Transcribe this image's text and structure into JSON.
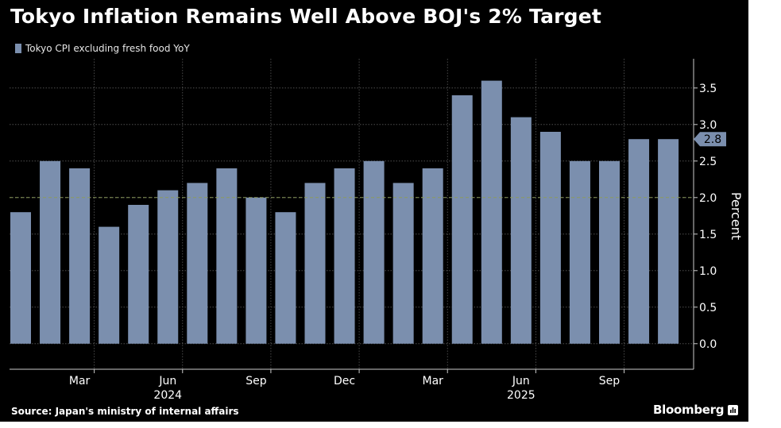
{
  "chart_data": {
    "type": "bar",
    "title": "Tokyo Inflation Remains Well Above BOJ's 2% Target",
    "series": [
      {
        "name": "Tokyo CPI excluding fresh food YoY",
        "values": [
          1.8,
          2.5,
          2.4,
          1.6,
          1.9,
          2.1,
          2.2,
          2.4,
          2.0,
          1.8,
          2.2,
          2.4,
          2.5,
          2.2,
          2.4,
          3.4,
          3.6,
          3.1,
          2.9,
          2.5,
          2.5,
          2.8,
          2.8
        ]
      }
    ],
    "x_tick_labels": [
      {
        "label": "Mar",
        "bar_index": 2
      },
      {
        "label": "Jun",
        "bar_index": 5
      },
      {
        "label": "Sep",
        "bar_index": 8
      },
      {
        "label": "Dec",
        "bar_index": 11
      },
      {
        "label": "Mar",
        "bar_index": 14
      },
      {
        "label": "Jun",
        "bar_index": 17
      },
      {
        "label": "Sep",
        "bar_index": 20
      }
    ],
    "year_labels": [
      {
        "label": "2024",
        "bar_index": 5
      },
      {
        "label": "2025",
        "bar_index": 17
      }
    ],
    "ylabel": "Percent",
    "y_ticks": [
      "0.0",
      "0.5",
      "1.0",
      "1.5",
      "2.0",
      "2.5",
      "3.0",
      "3.5"
    ],
    "ylim": [
      -0.35,
      3.9
    ],
    "reference_line": 2.0,
    "last_value_label": "2.8",
    "grid": true,
    "legend_position": "top-left",
    "colors": {
      "bar": "#7b8fae",
      "background": "#000000",
      "grid": "#5a5a5a",
      "reference_line": "#8c9b5c",
      "text": "#ffffff"
    }
  },
  "source": "Source: Japan's ministry of internal affairs",
  "brand": "Bloomberg",
  "brand_icon": "bar-chart-icon"
}
